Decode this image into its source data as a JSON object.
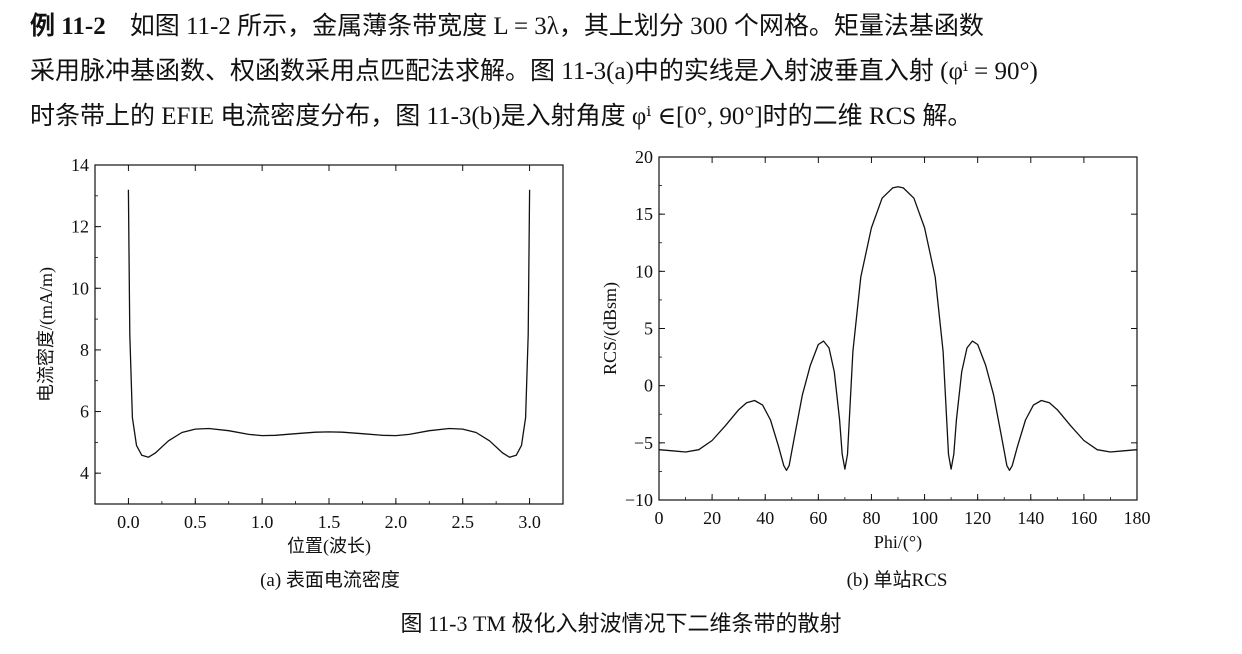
{
  "paragraph": {
    "example_label": "例 11-2",
    "line1": "如图 11-2 所示，金属薄条带宽度 L = 3λ，其上划分 300 个网格。矩量法基函数",
    "line2": "采用脉冲基函数、权函数采用点匹配法求解。图 11-3(a)中的实线是入射波垂直入射 (φⁱ = 90°)",
    "line3": "时条带上的 EFIE 电流密度分布，图 11-3(b)是入射角度 φⁱ ∈[0°, 90°]时的二维 RCS 解。"
  },
  "chart_data": [
    {
      "type": "line",
      "caption": "(a) 表面电流密度",
      "xlabel": "位置(波长)",
      "ylabel": "电流密度/(mA/m)",
      "xlim": [
        -0.25,
        3.25
      ],
      "ylim": [
        3,
        14
      ],
      "xticks": [
        "0.0",
        "0.5",
        "1.0",
        "1.5",
        "2.0",
        "2.5",
        "3.0"
      ],
      "yticks": [
        "4",
        "6",
        "8",
        "10",
        "12",
        "14"
      ],
      "grid": false,
      "series": [
        {
          "x": [
            0.0,
            0.01,
            0.03,
            0.06,
            0.1,
            0.15,
            0.2,
            0.3,
            0.4,
            0.5,
            0.6,
            0.75,
            0.9,
            1.0,
            1.1,
            1.25,
            1.4,
            1.5,
            1.6,
            1.75,
            1.9,
            2.0,
            2.1,
            2.25,
            2.4,
            2.5,
            2.6,
            2.7,
            2.8,
            2.85,
            2.9,
            2.94,
            2.97,
            2.99,
            3.0
          ],
          "y": [
            13.2,
            8.5,
            5.8,
            4.9,
            4.58,
            4.52,
            4.65,
            5.05,
            5.32,
            5.43,
            5.45,
            5.38,
            5.26,
            5.22,
            5.23,
            5.28,
            5.33,
            5.34,
            5.33,
            5.28,
            5.23,
            5.22,
            5.26,
            5.38,
            5.45,
            5.43,
            5.32,
            5.05,
            4.65,
            4.52,
            4.58,
            4.9,
            5.8,
            8.5,
            13.2
          ]
        }
      ]
    },
    {
      "type": "line",
      "caption": "(b) 单站RCS",
      "xlabel": "Phi/(°)",
      "ylabel": "RCS/(dBsm)",
      "xlim": [
        0,
        180
      ],
      "ylim": [
        -10,
        20
      ],
      "xticks": [
        "0",
        "20",
        "40",
        "60",
        "80",
        "100",
        "120",
        "140",
        "160",
        "180"
      ],
      "yticks": [
        "−10",
        "−5",
        "0",
        "5",
        "10",
        "15",
        "20"
      ],
      "grid": false,
      "series": [
        {
          "x": [
            0,
            5,
            10,
            15,
            20,
            25,
            30,
            33,
            36,
            39,
            42,
            45,
            47,
            48,
            49,
            51,
            54,
            57,
            60,
            62,
            64,
            66,
            68,
            69,
            70,
            71,
            73,
            76,
            80,
            84,
            88,
            90,
            92,
            96,
            100,
            104,
            107,
            109,
            110,
            111,
            112,
            114,
            116,
            118,
            120,
            123,
            126,
            129,
            131,
            132,
            133,
            135,
            138,
            141,
            144,
            147,
            150,
            155,
            160,
            165,
            170,
            175,
            180
          ],
          "y": [
            -5.6,
            -5.7,
            -5.8,
            -5.6,
            -4.8,
            -3.5,
            -2.1,
            -1.5,
            -1.3,
            -1.7,
            -3.0,
            -5.3,
            -7.0,
            -7.4,
            -7.0,
            -4.5,
            -0.8,
            1.8,
            3.6,
            3.9,
            3.3,
            1.2,
            -3.0,
            -6.0,
            -7.3,
            -6.0,
            3.0,
            9.5,
            13.8,
            16.4,
            17.3,
            17.4,
            17.3,
            16.4,
            13.8,
            9.5,
            3.0,
            -6.0,
            -7.3,
            -6.0,
            -3.0,
            1.2,
            3.3,
            3.9,
            3.6,
            1.8,
            -0.8,
            -4.5,
            -7.0,
            -7.4,
            -7.0,
            -5.3,
            -3.0,
            -1.7,
            -1.3,
            -1.5,
            -2.1,
            -3.5,
            -4.8,
            -5.6,
            -5.8,
            -5.7,
            -5.6
          ]
        }
      ]
    }
  ],
  "figure_caption": "图 11-3    TM 极化入射波情况下二维条带的散射"
}
